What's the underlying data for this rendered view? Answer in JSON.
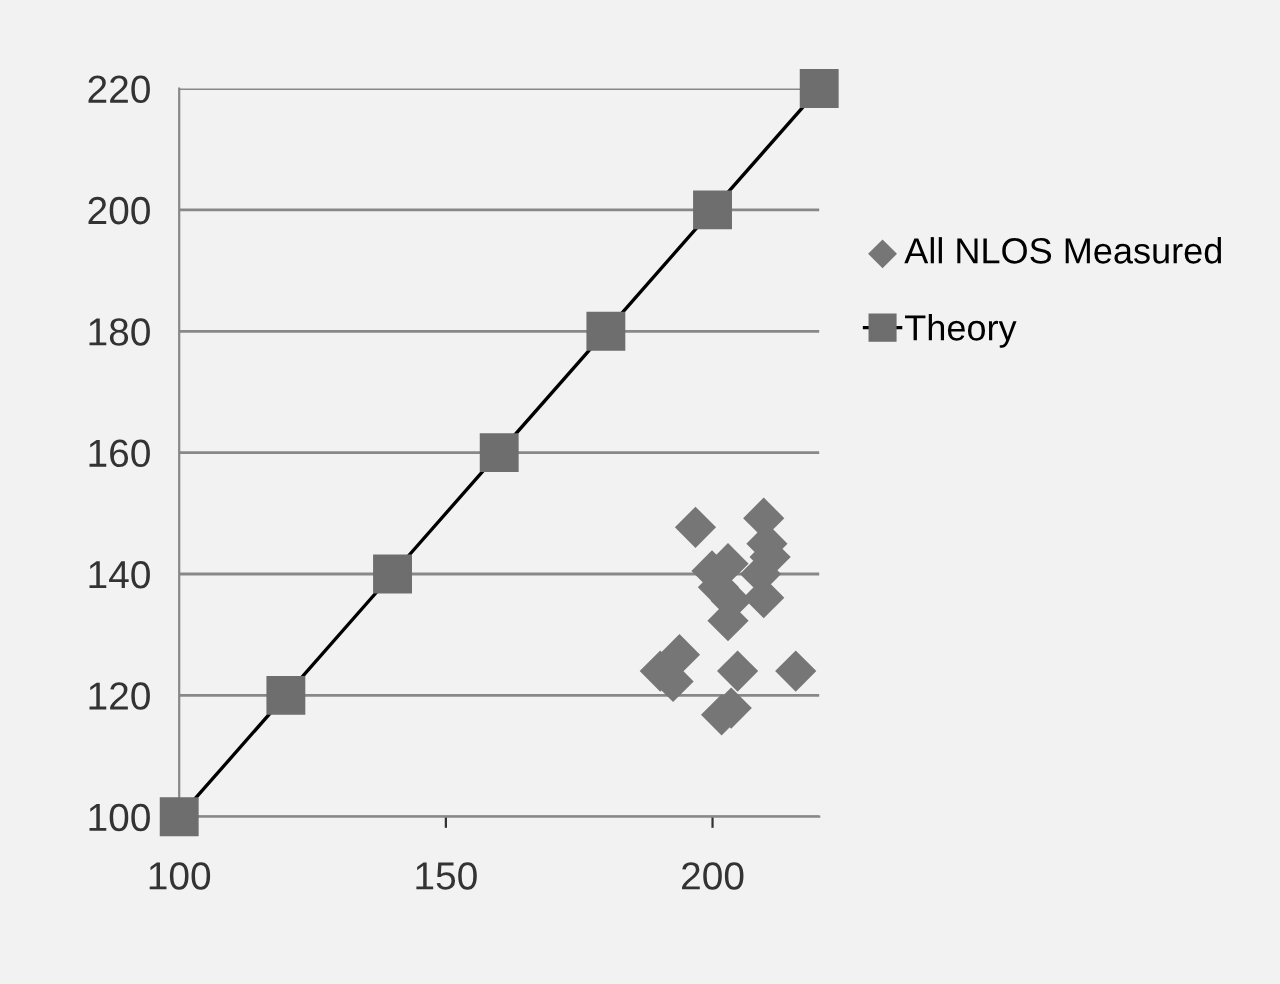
{
  "chart_data": {
    "type": "scatter",
    "xlim": [
      100,
      220
    ],
    "xticks": [
      100,
      150,
      200
    ],
    "ylim": [
      100,
      220
    ],
    "yticks": [
      100,
      120,
      140,
      160,
      180,
      200,
      220
    ],
    "grid": "y",
    "legend": "right",
    "series": [
      {
        "name": "All NLOS Measured",
        "marker": "diamond",
        "color": "#767676",
        "x": [
          196.8,
          209.6,
          210.2,
          210.8,
          199.9,
          202.9,
          209.0,
          201.1,
          209.6,
          203.5,
          202.9,
          193.8,
          190.2,
          192.6,
          204.7,
          215.6,
          201.7,
          203.5
        ],
        "values": [
          147.7,
          149.2,
          145.0,
          142.8,
          140.5,
          141.7,
          140.0,
          137.8,
          136.1,
          135.6,
          132.3,
          126.7,
          124.0,
          122.3,
          124.0,
          124.0,
          116.8,
          117.9
        ]
      },
      {
        "name": "Theory",
        "type": "line",
        "marker": "square",
        "line_style": "solid",
        "color": "#6e6e6e",
        "x": [
          100,
          120,
          140,
          160,
          180,
          200,
          220
        ],
        "values": [
          100,
          120,
          140,
          160,
          180,
          200,
          220
        ]
      }
    ]
  }
}
